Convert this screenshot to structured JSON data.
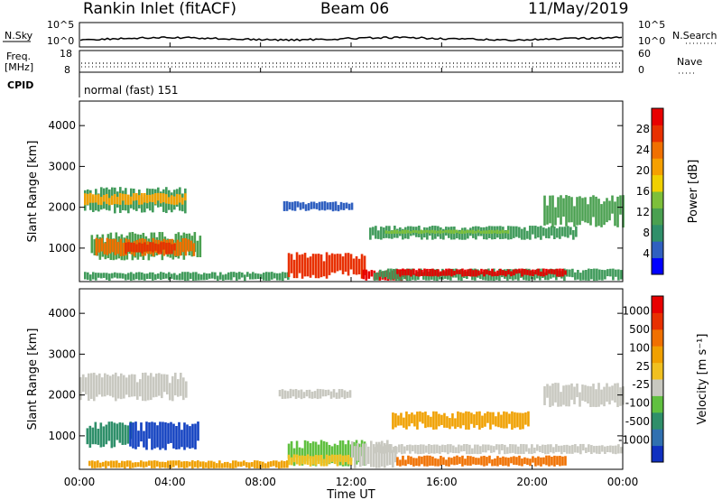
{
  "header": {
    "station": "Rankin Inlet (fitACF)",
    "beam": "Beam 06",
    "date": "11/May/2019"
  },
  "top_panels": {
    "nsky_label": "N.Sky",
    "nsearch_label": "N.Search",
    "nsky_ticks": [
      "10^5",
      "10^0"
    ],
    "freq_label": "Freq.",
    "freq_unit": "[MHz]",
    "freq_ticks": [
      "18",
      "8"
    ],
    "nave_label": "Nave",
    "nave_ticks": [
      "60",
      "0"
    ],
    "cpid_label": "CPID",
    "cpid_value": "normal (fast) 151"
  },
  "chart_data": [
    {
      "type": "heatmap",
      "name": "power",
      "ylabel": "Slant Range [km]",
      "xlabel": "Time UT",
      "x_ticks": [
        "00:00",
        "04:00",
        "08:00",
        "12:00",
        "16:00",
        "20:00",
        "00:00"
      ],
      "y_ticks": [
        1000,
        2000,
        3000,
        4000
      ],
      "xlim_hours": [
        0,
        24
      ],
      "ylim_km": [
        180,
        4600
      ],
      "colorbar": {
        "label": "Power [dB]",
        "ticks": [
          "4",
          "8",
          "12",
          "16",
          "20",
          "24",
          "28"
        ],
        "colors": [
          "#0000ff",
          "#3060c0",
          "#2f8f6a",
          "#4aa050",
          "#7dbf3a",
          "#f0d000",
          "#f5a000",
          "#f07000",
          "#e83000",
          "#e80000"
        ]
      },
      "regions": [
        {
          "t0": 0.2,
          "t1": 4.7,
          "r0": 1850,
          "r1": 2500,
          "color": "#3f9a5a"
        },
        {
          "t0": 0.2,
          "t1": 4.7,
          "r0": 2050,
          "r1": 2350,
          "color": "#f0a000"
        },
        {
          "t0": 0.5,
          "t1": 5.3,
          "r0": 700,
          "r1": 1400,
          "color": "#4aa050"
        },
        {
          "t0": 0.7,
          "t1": 5.1,
          "r0": 800,
          "r1": 1250,
          "color": "#f07000"
        },
        {
          "t0": 2.0,
          "t1": 4.2,
          "r0": 850,
          "r1": 1150,
          "color": "#e83000"
        },
        {
          "t0": 0.2,
          "t1": 9.2,
          "r0": 200,
          "r1": 420,
          "color": "#3f9a5a"
        },
        {
          "t0": 9.2,
          "t1": 12.6,
          "r0": 250,
          "r1": 900,
          "color": "#e83000"
        },
        {
          "t0": 12.5,
          "t1": 14.5,
          "r0": 200,
          "r1": 480,
          "color": "#e80000"
        },
        {
          "t0": 12.8,
          "t1": 22.0,
          "r0": 1200,
          "r1": 1550,
          "color": "#3f9a5a"
        },
        {
          "t0": 13.5,
          "t1": 19.0,
          "r0": 1350,
          "r1": 1450,
          "color": "#7dbf3a"
        },
        {
          "t0": 13.0,
          "t1": 24.0,
          "r0": 200,
          "r1": 500,
          "color": "#3f9a5a"
        },
        {
          "t0": 14.0,
          "t1": 21.5,
          "r0": 300,
          "r1": 500,
          "color": "#e80000"
        },
        {
          "t0": 20.5,
          "t1": 24.0,
          "r0": 1500,
          "r1": 2300,
          "color": "#4aa050"
        },
        {
          "t0": 9.0,
          "t1": 12.0,
          "r0": 1900,
          "r1": 2150,
          "color": "#3060c0"
        }
      ]
    },
    {
      "type": "heatmap",
      "name": "velocity",
      "ylabel": "Slant Range [km]",
      "xlabel": "Time UT",
      "x_ticks": [
        "00:00",
        "04:00",
        "08:00",
        "12:00",
        "16:00",
        "20:00",
        "00:00"
      ],
      "y_ticks": [
        1000,
        2000,
        3000,
        4000
      ],
      "xlim_hours": [
        0,
        24
      ],
      "ylim_km": [
        180,
        4600
      ],
      "colorbar": {
        "label": "Velocity [m s⁻¹]",
        "ticks": [
          "1000",
          "500",
          "100",
          "25",
          "-25",
          "-100",
          "-500",
          "-1000"
        ],
        "colors": [
          "#1030c0",
          "#3070b0",
          "#2f8f6a",
          "#60c040",
          "#c8c8c0",
          "#f0c020",
          "#f0a000",
          "#f07000",
          "#e83000",
          "#e80000"
        ]
      },
      "regions": [
        {
          "t0": 0.0,
          "t1": 4.7,
          "r0": 1850,
          "r1": 2550,
          "color": "#c8c8c0"
        },
        {
          "t0": 0.3,
          "t1": 2.3,
          "r0": 700,
          "r1": 1350,
          "color": "#2f8f6a"
        },
        {
          "t0": 2.2,
          "t1": 5.2,
          "r0": 650,
          "r1": 1350,
          "color": "#1040c0"
        },
        {
          "t0": 0.4,
          "t1": 9.2,
          "r0": 200,
          "r1": 400,
          "color": "#f0a000"
        },
        {
          "t0": 9.2,
          "t1": 12.6,
          "r0": 250,
          "r1": 900,
          "color": "#60c040"
        },
        {
          "t0": 9.2,
          "t1": 12.0,
          "r0": 250,
          "r1": 550,
          "color": "#f0c020"
        },
        {
          "t0": 12.0,
          "t1": 14.0,
          "r0": 200,
          "r1": 900,
          "color": "#c8c8c0"
        },
        {
          "t0": 13.8,
          "t1": 19.8,
          "r0": 1150,
          "r1": 1600,
          "color": "#f0a000"
        },
        {
          "t0": 13.0,
          "t1": 24.0,
          "r0": 550,
          "r1": 800,
          "color": "#c8c8c0"
        },
        {
          "t0": 14.0,
          "t1": 21.5,
          "r0": 250,
          "r1": 520,
          "color": "#f07000"
        },
        {
          "t0": 20.5,
          "t1": 24.0,
          "r0": 1700,
          "r1": 2300,
          "color": "#c8c8c0"
        },
        {
          "t0": 8.8,
          "t1": 12.0,
          "r0": 1900,
          "r1": 2150,
          "color": "#c8c8c0"
        }
      ]
    }
  ]
}
